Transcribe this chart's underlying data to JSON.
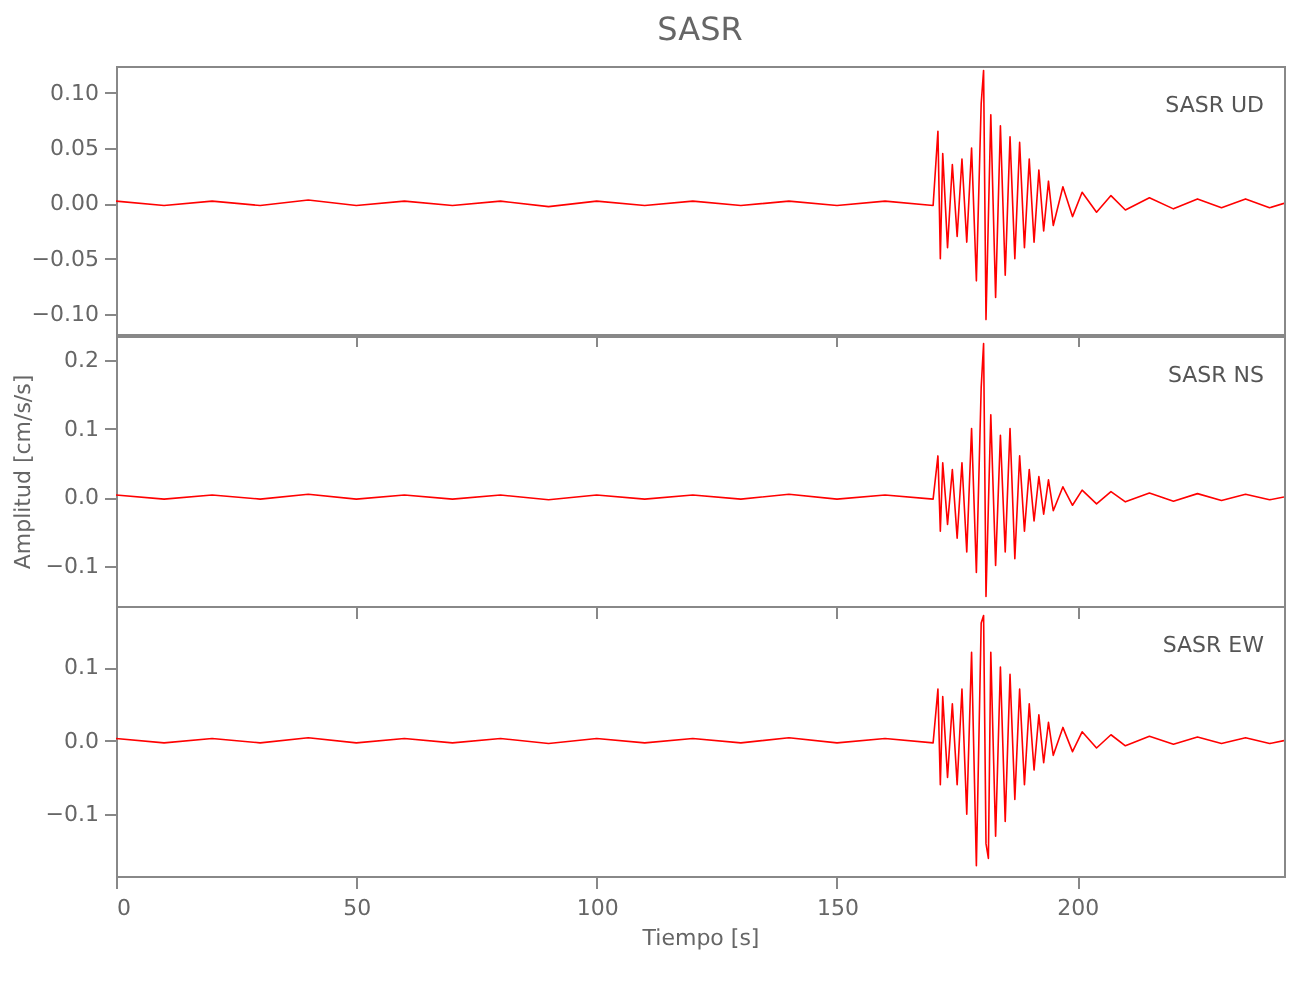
{
  "chart_data": [
    {
      "type": "line",
      "title": "SASR",
      "annotations": [
        "SASR   UD"
      ],
      "xlim": [
        0,
        243
      ],
      "xticks": [
        0,
        50,
        100,
        150,
        200
      ],
      "ylim": [
        -0.118,
        0.124
      ],
      "yticks": [
        {
          "value": -0.1,
          "label": "−0.10"
        },
        {
          "value": -0.05,
          "label": "−0.05"
        },
        {
          "value": 0,
          "label": "0.00"
        },
        {
          "value": 0.05,
          "label": "0.05"
        },
        {
          "value": 0.1,
          "label": "0.10"
        }
      ],
      "tick_labels": "y",
      "legend": false,
      "grid": false,
      "series": [
        {
          "color": "#ff0000",
          "x": [
            0,
            10,
            20,
            30,
            40,
            50,
            60,
            70,
            80,
            90,
            100,
            110,
            120,
            130,
            140,
            150,
            160,
            170,
            171,
            171.5,
            172,
            173,
            174,
            175,
            176,
            177,
            178,
            179,
            180,
            180.5,
            181,
            182,
            183,
            184,
            185,
            186,
            187,
            188,
            189,
            190,
            191,
            192,
            193,
            194,
            195,
            197,
            199,
            201,
            204,
            207,
            210,
            215,
            220,
            225,
            230,
            235,
            240,
            243
          ],
          "values": [
            0.002,
            -0.002,
            0.002,
            -0.002,
            0.003,
            -0.002,
            0.002,
            -0.002,
            0.002,
            -0.003,
            0.002,
            -0.002,
            0.002,
            -0.002,
            0.002,
            -0.002,
            0.002,
            -0.002,
            0.065,
            -0.05,
            0.045,
            -0.04,
            0.035,
            -0.03,
            0.04,
            -0.035,
            0.05,
            -0.07,
            0.09,
            0.12,
            -0.105,
            0.08,
            -0.085,
            0.07,
            -0.065,
            0.06,
            -0.05,
            0.055,
            -0.04,
            0.04,
            -0.035,
            0.03,
            -0.025,
            0.02,
            -0.02,
            0.015,
            -0.012,
            0.01,
            -0.008,
            0.007,
            -0.006,
            0.005,
            -0.005,
            0.004,
            -0.004,
            0.004,
            -0.004,
            0
          ]
        }
      ]
    },
    {
      "type": "line",
      "ylabel": "Amplitud [cm/s/s]",
      "annotations": [
        "SASR   NS"
      ],
      "xlim": [
        0,
        243
      ],
      "xticks": [
        0,
        50,
        100,
        150,
        200
      ],
      "ylim": [
        -0.159,
        0.235
      ],
      "yticks": [
        -0.1,
        {
          "value": 0,
          "label": "0.0"
        },
        0.1,
        0.2
      ],
      "tick_labels": "y",
      "legend": false,
      "grid": false,
      "series": [
        {
          "color": "#ff0000",
          "x": [
            0,
            10,
            20,
            30,
            40,
            50,
            60,
            70,
            80,
            90,
            100,
            110,
            120,
            130,
            140,
            150,
            160,
            170,
            171,
            171.5,
            172,
            173,
            174,
            175,
            176,
            177,
            178,
            179,
            180,
            180.5,
            181,
            182,
            183,
            184,
            185,
            186,
            187,
            188,
            189,
            190,
            191,
            192,
            193,
            194,
            195,
            197,
            199,
            201,
            204,
            207,
            210,
            215,
            220,
            225,
            230,
            235,
            240,
            243
          ],
          "values": [
            0.003,
            -0.003,
            0.003,
            -0.003,
            0.004,
            -0.003,
            0.003,
            -0.003,
            0.003,
            -0.004,
            0.003,
            -0.003,
            0.003,
            -0.003,
            0.004,
            -0.003,
            0.003,
            -0.003,
            0.06,
            -0.05,
            0.05,
            -0.04,
            0.04,
            -0.06,
            0.05,
            -0.08,
            0.1,
            -0.11,
            0.16,
            0.224,
            -0.145,
            0.12,
            -0.1,
            0.09,
            -0.08,
            0.1,
            -0.09,
            0.06,
            -0.05,
            0.04,
            -0.035,
            0.03,
            -0.025,
            0.025,
            -0.02,
            0.015,
            -0.012,
            0.01,
            -0.01,
            0.008,
            -0.007,
            0.006,
            -0.006,
            0.005,
            -0.005,
            0.004,
            -0.004,
            0
          ]
        }
      ]
    },
    {
      "type": "line",
      "xlabel": "Tiempo [s]",
      "annotations": [
        "SASR   EW"
      ],
      "xlim": [
        0,
        243
      ],
      "xticks": [
        0,
        50,
        100,
        150,
        200
      ],
      "ylim": [
        -0.184,
        0.183
      ],
      "yticks": [
        -0.1,
        {
          "value": 0,
          "label": "0.0"
        },
        0.1
      ],
      "legend": false,
      "grid": false,
      "series": [
        {
          "color": "#ff0000",
          "x": [
            0,
            10,
            20,
            30,
            40,
            50,
            60,
            70,
            80,
            90,
            100,
            110,
            120,
            130,
            140,
            150,
            160,
            170,
            171,
            171.5,
            172,
            173,
            174,
            175,
            176,
            177,
            178,
            179,
            180,
            180.5,
            181,
            181.5,
            182,
            183,
            184,
            185,
            186,
            187,
            188,
            189,
            190,
            191,
            192,
            193,
            194,
            195,
            197,
            199,
            201,
            204,
            207,
            210,
            215,
            220,
            225,
            230,
            235,
            240,
            243
          ],
          "values": [
            0.003,
            -0.003,
            0.003,
            -0.003,
            0.004,
            -0.003,
            0.003,
            -0.003,
            0.003,
            -0.004,
            0.003,
            -0.003,
            0.003,
            -0.003,
            0.004,
            -0.003,
            0.003,
            -0.003,
            0.07,
            -0.06,
            0.06,
            -0.05,
            0.05,
            -0.06,
            0.07,
            -0.1,
            0.12,
            -0.17,
            0.16,
            0.17,
            -0.14,
            -0.16,
            0.12,
            -0.13,
            0.1,
            -0.11,
            0.09,
            -0.08,
            0.07,
            -0.06,
            0.05,
            -0.04,
            0.035,
            -0.03,
            0.025,
            -0.02,
            0.018,
            -0.015,
            0.012,
            -0.01,
            0.008,
            -0.007,
            0.006,
            -0.005,
            0.005,
            -0.004,
            0.004,
            -0.004,
            0
          ]
        }
      ]
    }
  ]
}
